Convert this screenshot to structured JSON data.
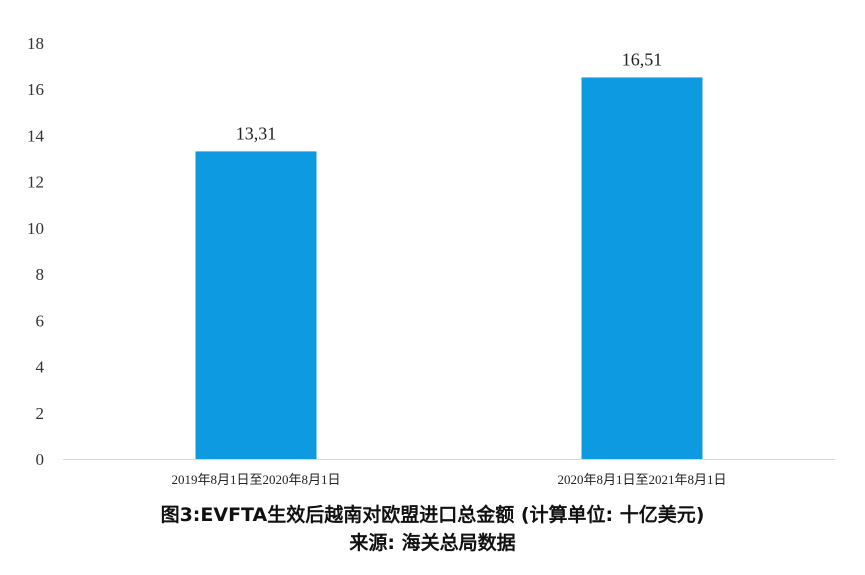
{
  "chart_data": {
    "type": "bar",
    "categories": [
      "2019年8月1日至2020年8月1日",
      "2020年8月1日至2021年8月1日"
    ],
    "values": [
      13.31,
      16.51
    ],
    "data_labels": [
      "13,31",
      "16,51"
    ],
    "ylim": [
      0,
      18
    ],
    "yticks": [
      0,
      2,
      4,
      6,
      8,
      10,
      12,
      14,
      16,
      18
    ],
    "grid": false,
    "legend": "none",
    "bar_color": "#0d9ae0",
    "axis_color": "#d9d9d9"
  },
  "caption": {
    "title": "图3:EVFTA生效后越南对欧盟进口总金额 (计算单位: 十亿美元)",
    "source": "来源: 海关总局数据"
  }
}
